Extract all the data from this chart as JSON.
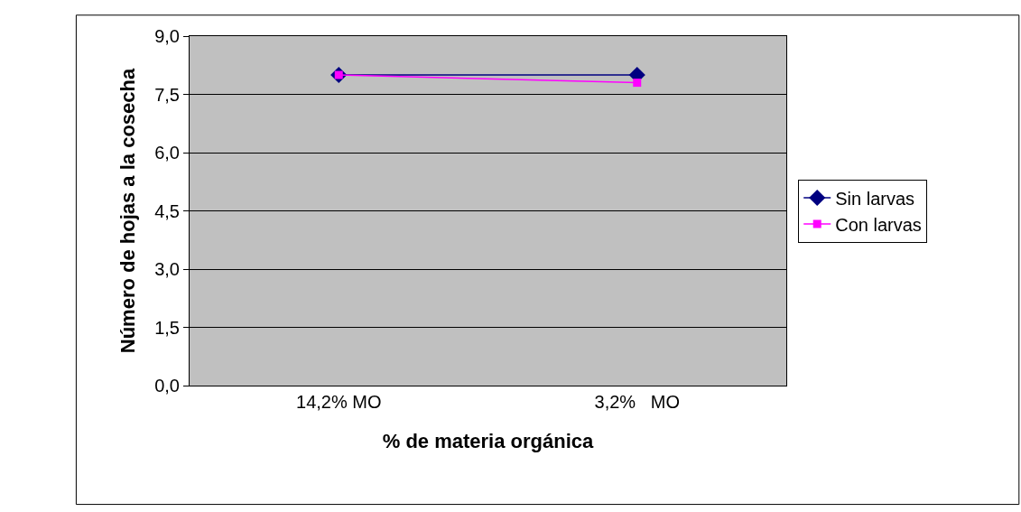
{
  "chart_data": {
    "type": "line",
    "xlabel": "% de materia orgánica",
    "ylabel": "Número de hojas a la cosecha",
    "categories": [
      "14,2% MO",
      "3,2%   MO"
    ],
    "series": [
      {
        "name": "Sin larvas",
        "color": "#000080",
        "values": [
          8.0,
          8.0
        ],
        "marker": "diamond"
      },
      {
        "name": "Con larvas",
        "color": "#ff00ff",
        "values": [
          8.0,
          7.8
        ],
        "marker": "square"
      }
    ],
    "ylim": [
      0,
      9
    ],
    "yticks": [
      {
        "value": 0,
        "label": "0,0"
      },
      {
        "value": 1.5,
        "label": "1,5"
      },
      {
        "value": 3,
        "label": "3,0"
      },
      {
        "value": 4.5,
        "label": "4,5"
      },
      {
        "value": 6,
        "label": "6,0"
      },
      {
        "value": 7.5,
        "label": "7,5"
      },
      {
        "value": 9,
        "label": "9,0"
      }
    ],
    "grid": "y",
    "legend": "right",
    "line_style": "solid"
  }
}
